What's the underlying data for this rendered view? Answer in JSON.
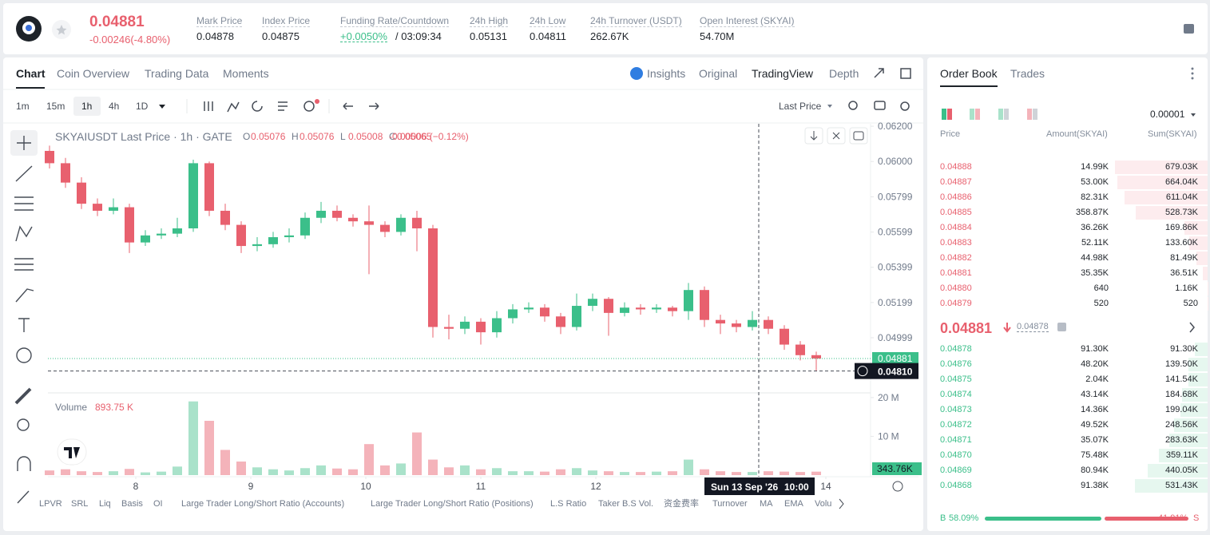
{
  "header": {
    "price": "0.04881",
    "change": "-0.00246(-4.80%)",
    "stats": [
      {
        "label": "Mark Price",
        "value": "0.04878"
      },
      {
        "label": "Index Price",
        "value": "0.04875"
      },
      {
        "label": "Funding Rate/Countdown",
        "value": "+0.0050%",
        "extra": "/ 03:09:34"
      },
      {
        "label": "24h High",
        "value": "0.05131"
      },
      {
        "label": "24h Low",
        "value": "0.04811"
      },
      {
        "label": "24h Turnover (USDT)",
        "value": "262.67K"
      },
      {
        "label": "Open Interest (SKYAI)",
        "value": "54.70M"
      }
    ]
  },
  "tabs": [
    "Chart",
    "Coin Overview",
    "Trading Data",
    "Moments"
  ],
  "view_tabs": [
    "Insights",
    "Original",
    "TradingView",
    "Depth"
  ],
  "intervals": [
    "1m",
    "15m",
    "1h",
    "4h",
    "1D"
  ],
  "price_type": "Last Price",
  "chart_data": [
    {
      "type": "candlestick",
      "title": "SKYAIUSDT Last Price · 1h · GATE",
      "ohlc": [
        {
          "key": "O",
          "value": "0.05076"
        },
        {
          "key": "H",
          "value": "0.05076"
        },
        {
          "key": "L",
          "value": "0.05008"
        },
        {
          "key": "C",
          "value": "0.05065"
        }
      ],
      "change": "-0.00006 (−0.12%)",
      "x": [
        0,
        2,
        4,
        6,
        8,
        10,
        12,
        14,
        16,
        18,
        20,
        22,
        24,
        26,
        28,
        30,
        32,
        34,
        36,
        38,
        40,
        42,
        44,
        46,
        48,
        50,
        52,
        54,
        56,
        58,
        60,
        62,
        64,
        66,
        68,
        70,
        72,
        74,
        76,
        78,
        80,
        82,
        84,
        86,
        88,
        90,
        92,
        94,
        96
      ],
      "open": [
        0.0606,
        0.0599,
        0.0588,
        0.0576,
        0.0572,
        0.0574,
        0.0554,
        0.0558,
        0.0559,
        0.0562,
        0.0599,
        0.0572,
        0.0564,
        0.0552,
        0.0553,
        0.0557,
        0.0558,
        0.0568,
        0.0572,
        0.0568,
        0.0566,
        0.0564,
        0.056,
        0.0568,
        0.0562,
        0.0506,
        0.0505,
        0.0509,
        0.0503,
        0.0511,
        0.0516,
        0.0517,
        0.0512,
        0.0506,
        0.0518,
        0.0522,
        0.0514,
        0.0517,
        0.0516,
        0.0517,
        0.0515,
        0.0527,
        0.051,
        0.0508,
        0.0506,
        0.051,
        0.0505,
        0.0496,
        0.049
      ],
      "high": [
        0.0609,
        0.0602,
        0.0591,
        0.0579,
        0.0579,
        0.0576,
        0.0561,
        0.0562,
        0.0568,
        0.0601,
        0.06,
        0.0576,
        0.0566,
        0.0557,
        0.056,
        0.0562,
        0.0571,
        0.0577,
        0.0575,
        0.057,
        0.0575,
        0.0566,
        0.057,
        0.0572,
        0.0564,
        0.0513,
        0.0512,
        0.0511,
        0.0515,
        0.0519,
        0.052,
        0.0519,
        0.0514,
        0.0525,
        0.0525,
        0.0523,
        0.052,
        0.0519,
        0.0519,
        0.0518,
        0.0531,
        0.0529,
        0.0513,
        0.051,
        0.0515,
        0.0512,
        0.0507,
        0.0498,
        0.0492
      ],
      "low": [
        0.0596,
        0.0585,
        0.0573,
        0.0569,
        0.057,
        0.0548,
        0.0552,
        0.0556,
        0.0557,
        0.056,
        0.0569,
        0.0561,
        0.0548,
        0.0549,
        0.0551,
        0.0554,
        0.0556,
        0.0565,
        0.0566,
        0.0563,
        0.0536,
        0.0557,
        0.0558,
        0.0549,
        0.05,
        0.0499,
        0.0502,
        0.0496,
        0.05,
        0.0508,
        0.0514,
        0.0509,
        0.0502,
        0.0504,
        0.0515,
        0.0501,
        0.0512,
        0.0513,
        0.0514,
        0.0512,
        0.051,
        0.0506,
        0.0502,
        0.0503,
        0.0504,
        0.0502,
        0.0493,
        0.0487,
        0.0481
      ],
      "close": [
        0.0599,
        0.0588,
        0.0576,
        0.0572,
        0.0574,
        0.0554,
        0.0558,
        0.0559,
        0.0562,
        0.0599,
        0.0572,
        0.0564,
        0.0552,
        0.0553,
        0.0557,
        0.0558,
        0.0568,
        0.0572,
        0.0568,
        0.0566,
        0.0564,
        0.056,
        0.0568,
        0.0562,
        0.0506,
        0.0505,
        0.0509,
        0.0503,
        0.0511,
        0.0516,
        0.0517,
        0.0512,
        0.0506,
        0.0518,
        0.0522,
        0.0514,
        0.0517,
        0.0516,
        0.0517,
        0.0515,
        0.0527,
        0.051,
        0.0508,
        0.0506,
        0.051,
        0.0505,
        0.0496,
        0.049,
        0.04881
      ],
      "up_color": "#3bbf8a",
      "down_color": "#e8606e",
      "xlim": [
        -0.2,
        102.8
      ],
      "xticks": [
        {
          "value": 10.8,
          "label": "8"
        },
        {
          "value": 25.2,
          "label": "9"
        },
        {
          "value": 39.6,
          "label": "10"
        },
        {
          "value": 54,
          "label": "11"
        },
        {
          "value": 68.4,
          "label": "12"
        },
        {
          "value": 97.2,
          "label": "14"
        }
      ],
      "ylim": [
        0.04695,
        0.06214
      ],
      "yticks": [
        {
          "value": 0.062,
          "label": "0.06200"
        },
        {
          "value": 0.06,
          "label": "0.06000"
        },
        {
          "value": 0.05799,
          "label": "0.05799"
        },
        {
          "value": 0.05599,
          "label": "0.05599"
        },
        {
          "value": 0.05399,
          "label": "0.05399"
        },
        {
          "value": 0.05199,
          "label": "0.05199"
        },
        {
          "value": 0.04999,
          "label": "0.04999"
        }
      ],
      "last_price": {
        "value": 0.04881,
        "label": "0.04881"
      },
      "crosshair": {
        "x": 88.8,
        "y": 0.0481,
        "y_label": "0.04810",
        "date_label": "Sun 13 Sep '26",
        "time_label": "10:00"
      }
    },
    {
      "type": "bar",
      "title": "Volume",
      "value_label": "893.75 K",
      "values": [
        1.2,
        1.5,
        1.0,
        0.8,
        1.0,
        1.6,
        0.7,
        0.9,
        2.2,
        19.0,
        14.0,
        6.5,
        3.5,
        2.0,
        1.5,
        1.2,
        1.8,
        2.5,
        1.7,
        1.5,
        8.0,
        2.5,
        3.0,
        11.0,
        4.0,
        2.0,
        2.5,
        1.5,
        1.8,
        1.0,
        1.0,
        0.9,
        1.5,
        1.8,
        1.2,
        1.0,
        0.8,
        0.8,
        0.9,
        1.0,
        4.0,
        1.5,
        1.0,
        0.8,
        0.8,
        1.0,
        0.9,
        0.8,
        0.89375
      ],
      "ylim": [
        0,
        21
      ],
      "yticks": [
        {
          "value": 10,
          "label": "10 M"
        },
        {
          "value": 20,
          "label": "20 M"
        }
      ],
      "last_label": "343.76K"
    }
  ],
  "indicators": [
    "LPVR",
    "SRL",
    "Liq",
    "Basis",
    "OI",
    "Large Trader Long/Short Ratio (Accounts)",
    "Large Trader Long/Short Ratio (Positions)",
    "L.S Ratio",
    "Taker B.S Vol.",
    "资金费率",
    "Turnover",
    "MA",
    "EMA",
    "Volu"
  ],
  "order_book": {
    "tabs": [
      "Order Book",
      "Trades"
    ],
    "precision": "0.00001",
    "columns": [
      "Price",
      "Amount(SKYAI)",
      "Sum(SKYAI)"
    ],
    "asks": [
      [
        "0.04888",
        "14.99K",
        "679.03K"
      ],
      [
        "0.04887",
        "53.00K",
        "664.04K"
      ],
      [
        "0.04886",
        "82.31K",
        "611.04K"
      ],
      [
        "0.04885",
        "358.87K",
        "528.73K"
      ],
      [
        "0.04884",
        "36.26K",
        "169.86K"
      ],
      [
        "0.04883",
        "52.11K",
        "133.60K"
      ],
      [
        "0.04882",
        "44.98K",
        "81.49K"
      ],
      [
        "0.04881",
        "35.35K",
        "36.51K"
      ],
      [
        "0.04880",
        "640",
        "1.16K"
      ],
      [
        "0.04879",
        "520",
        "520"
      ]
    ],
    "last_price": "0.04881",
    "mark_price": "0.04878",
    "bids": [
      [
        "0.04878",
        "91.30K",
        "91.30K"
      ],
      [
        "0.04876",
        "48.20K",
        "139.50K"
      ],
      [
        "0.04875",
        "2.04K",
        "141.54K"
      ],
      [
        "0.04874",
        "43.14K",
        "184.68K"
      ],
      [
        "0.04873",
        "14.36K",
        "199.04K"
      ],
      [
        "0.04872",
        "49.52K",
        "248.56K"
      ],
      [
        "0.04871",
        "35.07K",
        "283.63K"
      ],
      [
        "0.04870",
        "75.48K",
        "359.11K"
      ],
      [
        "0.04869",
        "80.94K",
        "440.05K"
      ],
      [
        "0.04868",
        "91.38K",
        "531.43K"
      ]
    ],
    "buy_key": "B",
    "buy": "58.09%",
    "sell": "41.91%",
    "sell_key": "S"
  }
}
